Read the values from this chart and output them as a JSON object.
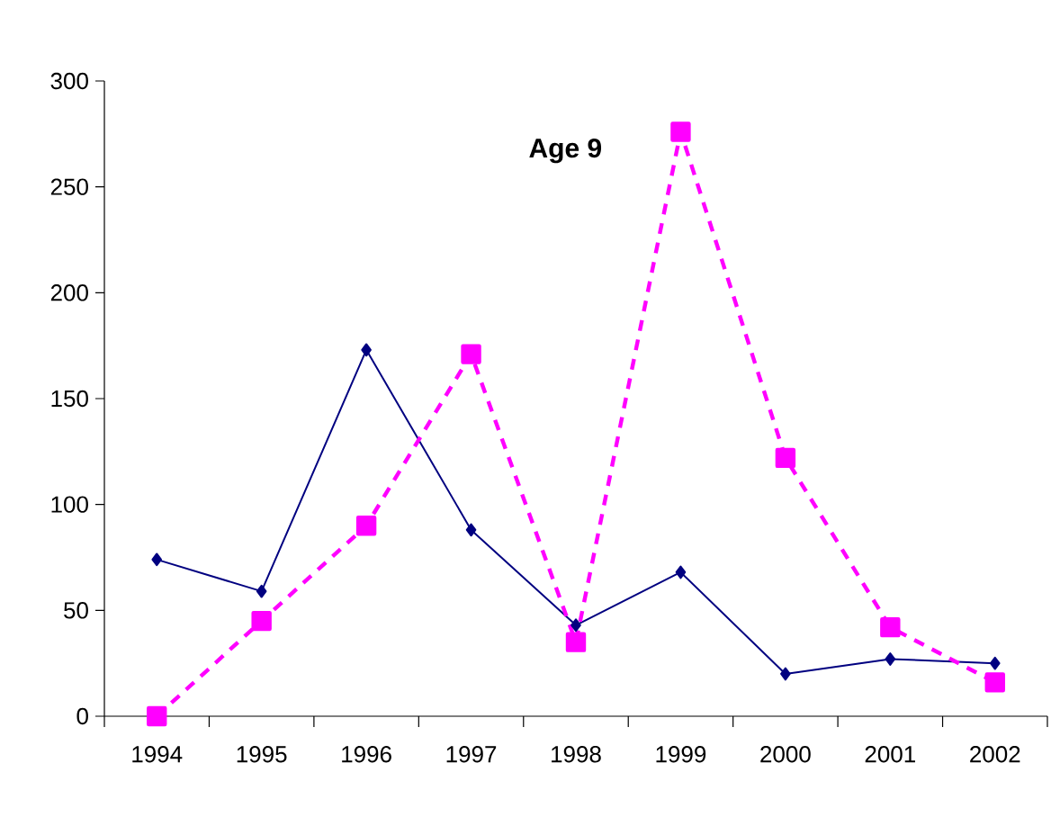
{
  "chart_data": {
    "type": "line",
    "title": "Age 9",
    "categories": [
      "1994",
      "1995",
      "1996",
      "1997",
      "1998",
      "1999",
      "2000",
      "2001",
      "2002"
    ],
    "ylim": [
      0,
      300
    ],
    "yticks": [
      0,
      50,
      100,
      150,
      200,
      250,
      300
    ],
    "series": [
      {
        "color": "#000080",
        "marker": "diamond",
        "line_style": "solid",
        "values": [
          74,
          59,
          173,
          88,
          43,
          68,
          20,
          27,
          25
        ]
      },
      {
        "color": "#ff00ff",
        "marker": "square",
        "line_style": "dashed",
        "values": [
          0,
          45,
          90,
          171,
          35,
          276,
          122,
          42,
          16
        ]
      }
    ]
  }
}
